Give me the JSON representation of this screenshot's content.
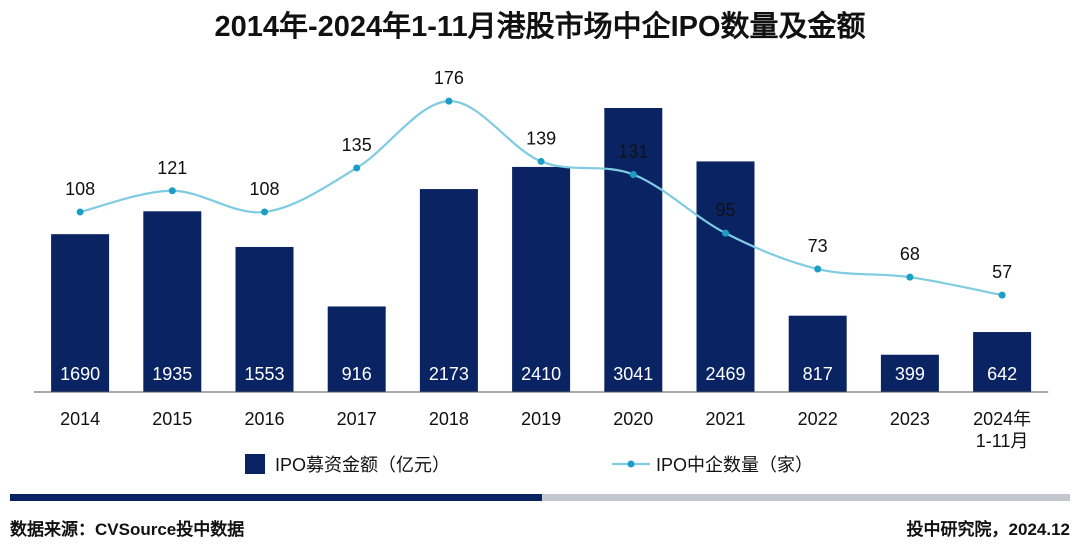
{
  "chart_data": {
    "type": "bar+line",
    "title": "2014年-2024年1-11月港股市场中企IPO数量及金额",
    "categories": [
      [
        "2014"
      ],
      [
        "2015"
      ],
      [
        "2016"
      ],
      [
        "2017"
      ],
      [
        "2018"
      ],
      [
        "2019"
      ],
      [
        "2020"
      ],
      [
        "2021"
      ],
      [
        "2022"
      ],
      [
        "2023"
      ],
      [
        "2024年",
        "1-11月"
      ]
    ],
    "series": [
      {
        "name": "IPO募资金额（亿元）",
        "type": "bar",
        "color": "#0a2463",
        "values": [
          1690,
          1935,
          1553,
          916,
          2173,
          2410,
          3041,
          2469,
          817,
          399,
          642
        ]
      },
      {
        "name": "IPO中企数量（家）",
        "type": "line",
        "color": "#7ecbe2",
        "marker_color": "#1b9dc6",
        "values": [
          108,
          121,
          108,
          135,
          176,
          139,
          131,
          95,
          73,
          68,
          57
        ]
      }
    ],
    "legend_position": "bottom",
    "grid": false
  },
  "footer": {
    "source": "数据来源：CVSource投中数据",
    "credit": "投中研究院，2024.12"
  },
  "colors": {
    "bar": "#0a2463",
    "line": "#7ecbe2",
    "marker": "#1b9dc6",
    "rule_dark": "#0a2463",
    "rule_light": "#c3c7cf",
    "axis": "#555555"
  }
}
